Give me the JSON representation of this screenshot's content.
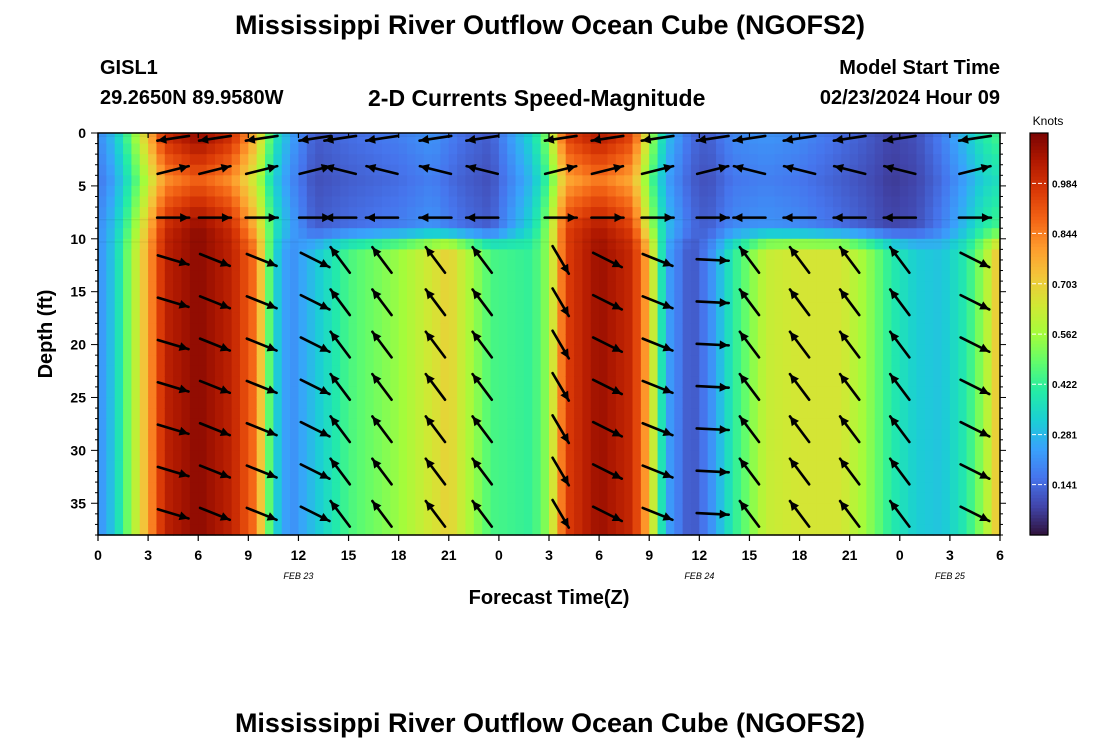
{
  "page": {
    "title": "Mississippi River Outflow Ocean Cube (NGOFS2)",
    "footer_title": "Mississippi River Outflow Ocean Cube (NGOFS2)"
  },
  "station": {
    "id": "GISL1",
    "coords": "29.2650N  89.9580W"
  },
  "model": {
    "label": "Model Start Time",
    "start": "02/23/2024 Hour 09"
  },
  "chart_data": {
    "type": "heatmap",
    "title": "2-D Currents Speed-Magnitude",
    "xlabel": "Forecast Time(Z)",
    "ylabel": "Depth (ft)",
    "x_ticks": [
      "0",
      "3",
      "6",
      "9",
      "12",
      "15",
      "18",
      "21",
      "0",
      "3",
      "6",
      "9",
      "12",
      "15",
      "18",
      "21",
      "0",
      "3",
      "6"
    ],
    "x_tick_hours": [
      0,
      3,
      6,
      9,
      12,
      15,
      18,
      21,
      24,
      27,
      30,
      33,
      36,
      39,
      42,
      45,
      48,
      51,
      54
    ],
    "xlim_hours": [
      0,
      54
    ],
    "date_labels": [
      {
        "text": "FEB 23",
        "hour": 12
      },
      {
        "text": "FEB 24",
        "hour": 36
      },
      {
        "text": "FEB 25",
        "hour": 51
      }
    ],
    "y_ticks": [
      0,
      5,
      10,
      15,
      20,
      25,
      30,
      35
    ],
    "ylim": [
      0,
      38
    ],
    "colorbar": {
      "label": "Knots",
      "ticks": [
        "0.984",
        "0.844",
        "0.703",
        "0.562",
        "0.422",
        "0.281",
        "0.141"
      ],
      "tick_values": [
        0.984,
        0.844,
        0.703,
        0.562,
        0.422,
        0.281,
        0.141
      ],
      "range": [
        0.0,
        1.125
      ]
    },
    "colormap": [
      "#30123b",
      "#4145ab",
      "#4675ed",
      "#39a2fc",
      "#1bcfd4",
      "#24eca6",
      "#61fc6c",
      "#a4fc3b",
      "#d1e834",
      "#f3c63a",
      "#fe9b2d",
      "#f36315",
      "#d93806",
      "#b11901",
      "#7a0402"
    ],
    "speed_profile": {
      "hours": [
        0,
        1,
        2,
        4,
        6,
        8,
        9.5,
        10.5,
        11.5,
        13,
        15,
        18,
        20,
        21,
        22,
        23.5,
        26,
        27,
        28,
        30,
        32,
        33,
        34,
        35.5,
        36.5,
        38,
        40,
        42,
        44.5,
        46,
        47.5,
        49,
        50.5,
        52,
        53,
        54
      ],
      "upper_knots": [
        0.2,
        0.3,
        0.5,
        1.0,
        1.1,
        1.0,
        0.75,
        0.4,
        0.25,
        0.12,
        0.15,
        0.18,
        0.22,
        0.18,
        0.15,
        0.12,
        0.35,
        0.55,
        0.95,
        1.05,
        0.95,
        0.6,
        0.3,
        0.15,
        0.12,
        0.2,
        0.22,
        0.2,
        0.15,
        0.12,
        0.08,
        0.1,
        0.18,
        0.3,
        0.4,
        0.45
      ],
      "lower_knots": [
        0.2,
        0.32,
        0.55,
        1.02,
        1.1,
        1.02,
        0.85,
        0.35,
        0.2,
        0.3,
        0.45,
        0.55,
        0.65,
        0.7,
        0.6,
        0.45,
        0.42,
        0.55,
        0.95,
        1.08,
        1.0,
        0.75,
        0.25,
        0.1,
        0.18,
        0.4,
        0.62,
        0.65,
        0.65,
        0.55,
        0.4,
        0.32,
        0.3,
        0.4,
        0.55,
        0.75
      ]
    },
    "vector_columns": [
      {
        "hour": 4.5,
        "dx": 1,
        "dy": 0.3
      },
      {
        "hour": 7.0,
        "dx": 1,
        "dy": 0.4
      },
      {
        "hour": 9.8,
        "dx": 1,
        "dy": 0.4
      },
      {
        "hour": 13.0,
        "dx": 1,
        "dy": 0.5
      },
      {
        "hour": 14.5,
        "dx": -0.6,
        "dy": -0.8
      },
      {
        "hour": 17.0,
        "dx": -0.6,
        "dy": -0.8
      },
      {
        "hour": 20.2,
        "dx": -0.6,
        "dy": -0.8
      },
      {
        "hour": 23.0,
        "dx": -0.6,
        "dy": -0.8
      },
      {
        "hour": 27.7,
        "dx": 0.5,
        "dy": 0.85
      },
      {
        "hour": 30.5,
        "dx": 1,
        "dy": 0.5
      },
      {
        "hour": 33.5,
        "dx": 1,
        "dy": 0.4
      },
      {
        "hour": 36.8,
        "dx": 1,
        "dy": 0.05
      },
      {
        "hour": 39.0,
        "dx": -0.6,
        "dy": -0.8
      },
      {
        "hour": 42.0,
        "dx": -0.6,
        "dy": -0.8
      },
      {
        "hour": 45.0,
        "dx": -0.6,
        "dy": -0.8
      },
      {
        "hour": 48.0,
        "dx": -0.6,
        "dy": -0.8
      },
      {
        "hour": 52.5,
        "dx": 1,
        "dy": 0.5
      }
    ],
    "vector_depths": [
      12,
      16,
      20,
      24,
      28,
      32,
      36
    ]
  }
}
